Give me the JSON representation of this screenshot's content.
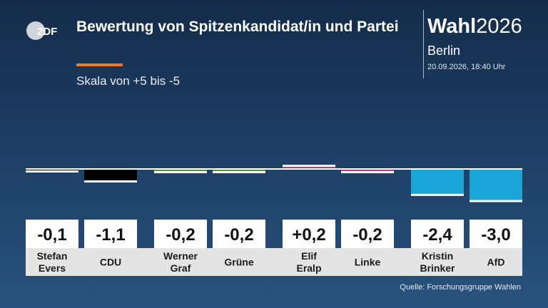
{
  "logo_text": "2DF",
  "title": "Bewertung von Spitzenkandidat/in und Partei",
  "subtitle": "Skala von +5 bis -5",
  "brand": {
    "bold": "Wahl",
    "year": "2026",
    "region": "Berlin",
    "date": "20.09.2026, 18:40 Uhr"
  },
  "source": "Quelle: Forschungsgruppe Wahlen",
  "chart_data": {
    "type": "bar",
    "title": "Bewertung von Spitzenkandidat/in und Partei",
    "subtitle": "Skala von +5 bis -5",
    "ylim": [
      -5,
      5
    ],
    "grid": false,
    "categories": [
      "Stefan Evers",
      "CDU",
      "Werner Graf",
      "Grüne",
      "Elif Eralp",
      "Linke",
      "Kristin Brinker",
      "AfD"
    ],
    "values": [
      -0.1,
      -1.1,
      -0.2,
      -0.2,
      0.2,
      -0.2,
      -2.4,
      -3.0
    ],
    "value_labels": [
      "-0,1",
      "-1,1",
      "-0,2",
      "-0,2",
      "+0,2",
      "-0,2",
      "-2,4",
      "-3,0"
    ],
    "label_lines": [
      [
        "Stefan",
        "Evers"
      ],
      [
        "CDU"
      ],
      [
        "Werner",
        "Graf"
      ],
      [
        "Grüne"
      ],
      [
        "Elif",
        "Eralp"
      ],
      [
        "Linke"
      ],
      [
        "Kristin",
        "Brinker"
      ],
      [
        "AfD"
      ]
    ],
    "colors": [
      "#000000",
      "#000000",
      "#46962b",
      "#46962b",
      "#be3075",
      "#be3075",
      "#1aa5d8",
      "#1aa5d8"
    ]
  }
}
